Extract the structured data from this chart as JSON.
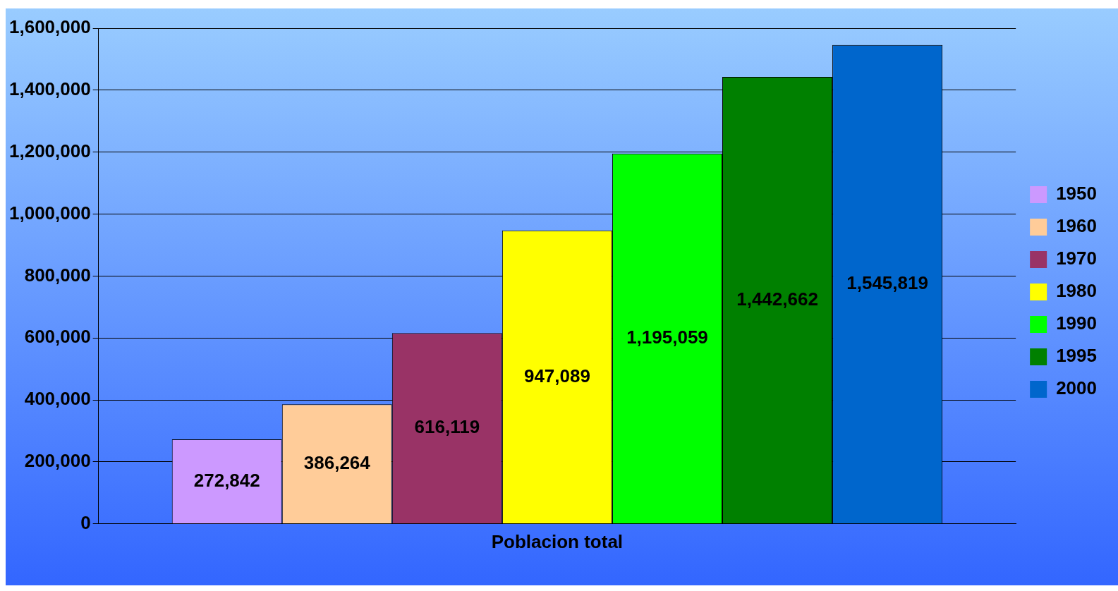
{
  "chart_data": {
    "type": "bar",
    "categories": [
      "Poblacion total"
    ],
    "series": [
      {
        "name": "1950",
        "color": "#cc99ff",
        "values": [
          272842
        ],
        "value_labels": [
          "272,842"
        ]
      },
      {
        "name": "1960",
        "color": "#ffcc99",
        "values": [
          386264
        ],
        "value_labels": [
          "386,264"
        ]
      },
      {
        "name": "1970",
        "color": "#993366",
        "values": [
          616119
        ],
        "value_labels": [
          "616,119"
        ]
      },
      {
        "name": "1980",
        "color": "#ffff00",
        "values": [
          947089
        ],
        "value_labels": [
          "947,089"
        ]
      },
      {
        "name": "1990",
        "color": "#00ff00",
        "values": [
          1195059
        ],
        "value_labels": [
          "1,195,059"
        ]
      },
      {
        "name": "1995",
        "color": "#008000",
        "values": [
          1442662
        ],
        "value_labels": [
          "1,442,662"
        ]
      },
      {
        "name": "2000",
        "color": "#0066cc",
        "values": [
          1545819
        ],
        "value_labels": [
          "1,545,819"
        ]
      }
    ],
    "ylim": [
      0,
      1600000
    ],
    "yticks": [
      {
        "value": 0,
        "label": "0"
      },
      {
        "value": 200000,
        "label": "200,000"
      },
      {
        "value": 400000,
        "label": "400,000"
      },
      {
        "value": 600000,
        "label": "600,000"
      },
      {
        "value": 800000,
        "label": "800,000"
      },
      {
        "value": 1000000,
        "label": "1,000,000"
      },
      {
        "value": 1200000,
        "label": "1,200,000"
      },
      {
        "value": 1400000,
        "label": "1,400,000"
      },
      {
        "value": 1600000,
        "label": "1,600,000"
      }
    ],
    "grid": "y",
    "legend": "right"
  }
}
